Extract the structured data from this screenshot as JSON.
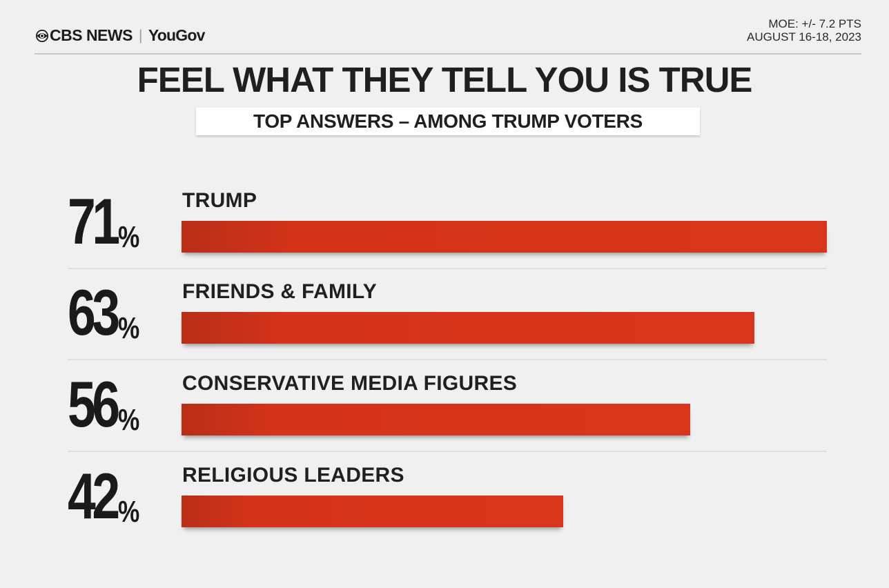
{
  "header": {
    "brand_cbs": "CBS NEWS",
    "brand_sep": "|",
    "brand_yougov": "YouGov",
    "moe": "MOE: +/- 7.2 PTS",
    "dates": "AUGUST 16-18, 2023"
  },
  "colors": {
    "bar": "#d4341a",
    "background": "#f0f0f0",
    "text": "#1c1c1c"
  },
  "chart_data": {
    "type": "bar",
    "orientation": "horizontal",
    "title": "FEEL WHAT THEY TELL YOU IS TRUE",
    "subtitle": "TOP ANSWERS – AMONG TRUMP VOTERS",
    "categories": [
      "TRUMP",
      "FRIENDS & FAMILY",
      "CONSERVATIVE MEDIA FIGURES",
      "RELIGIOUS LEADERS"
    ],
    "values": [
      71,
      63,
      56,
      42
    ],
    "value_labels": [
      "71",
      "63",
      "56",
      "42"
    ],
    "unit": "%",
    "xlim": [
      0,
      71
    ],
    "grid": false,
    "legend": "none"
  }
}
